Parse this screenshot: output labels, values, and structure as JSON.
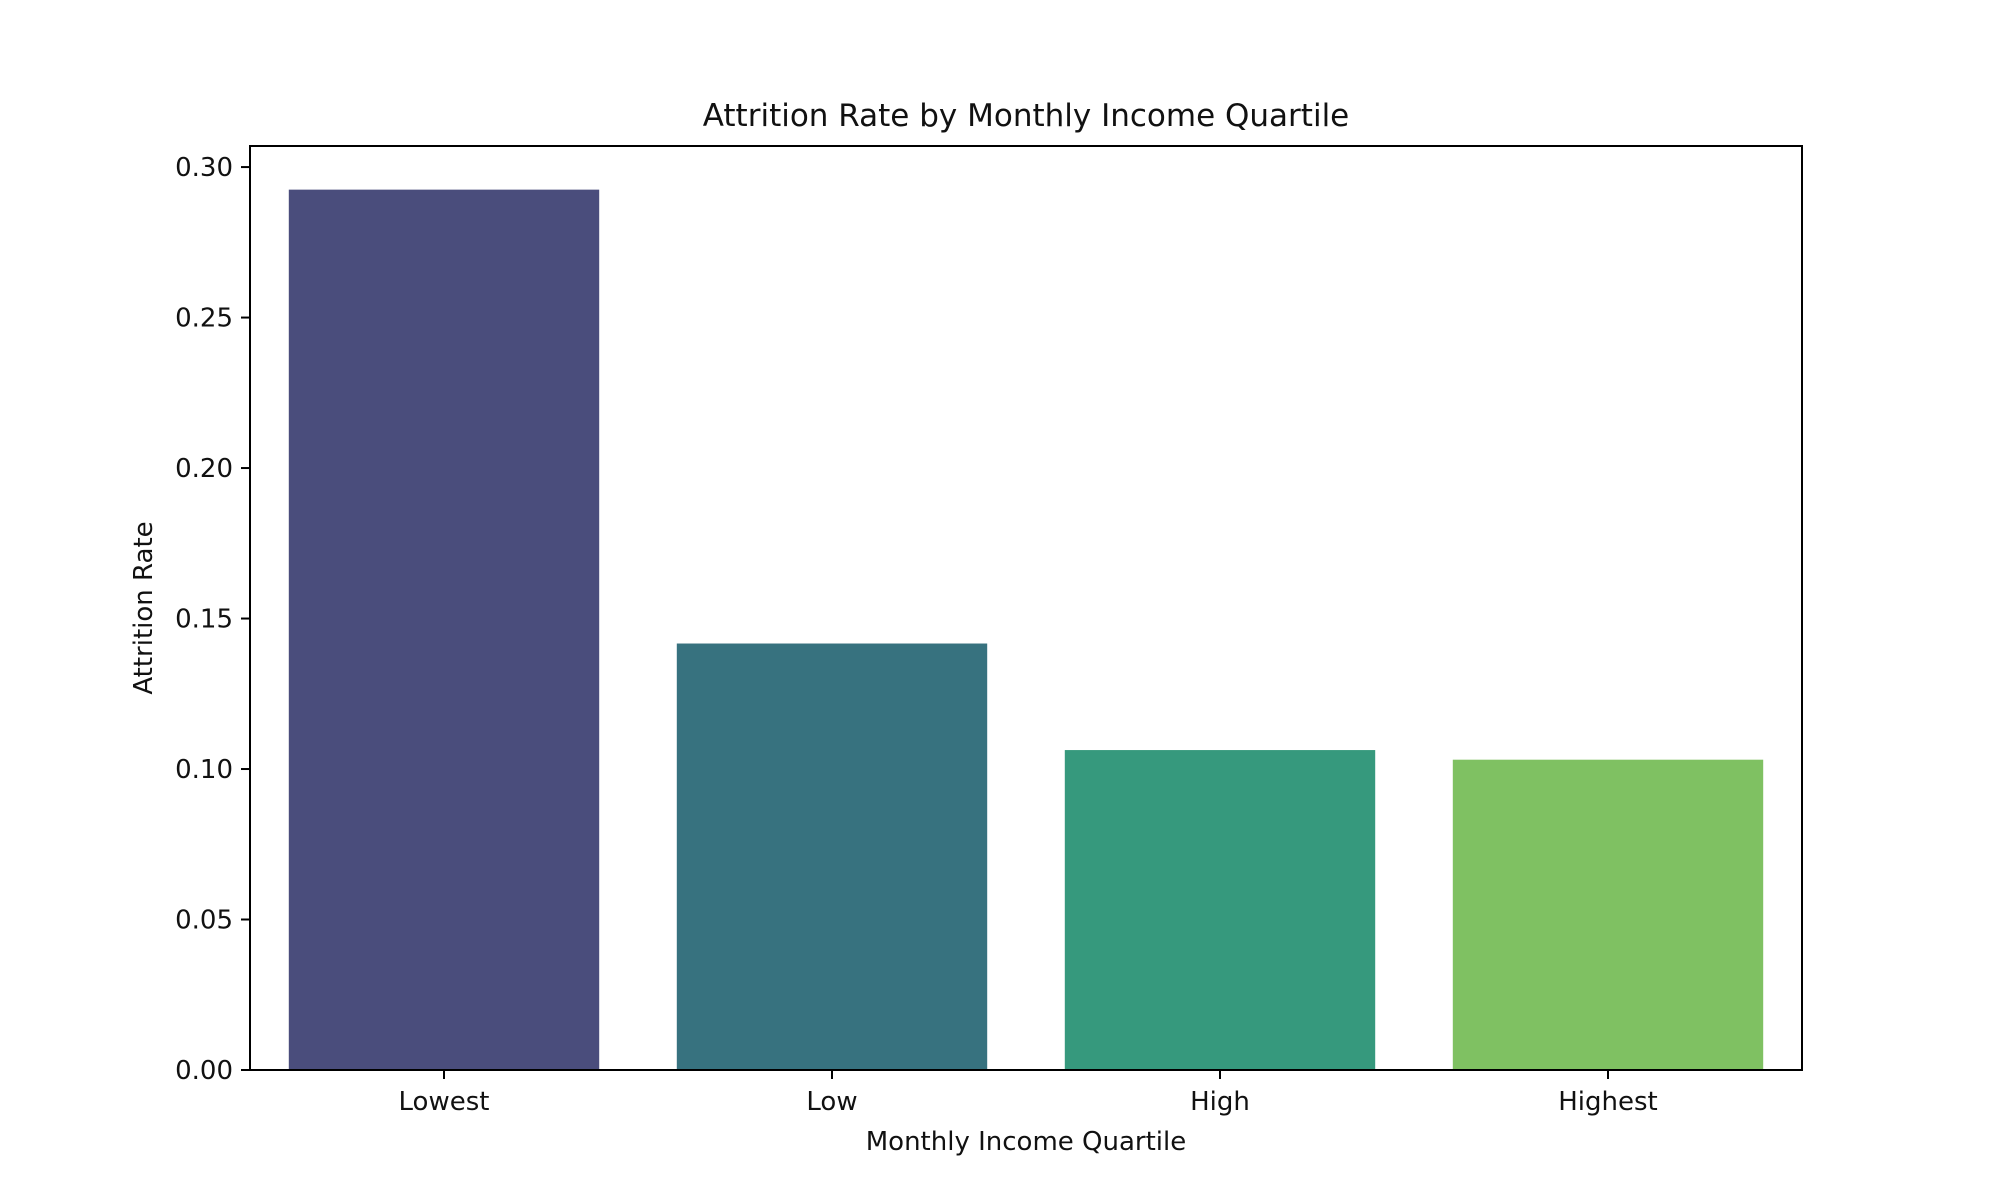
{
  "chart_data": {
    "type": "bar",
    "title": "Attrition Rate by Monthly Income Quartile",
    "xlabel": "Monthly Income Quartile",
    "ylabel": "Attrition Rate",
    "categories": [
      "Lowest",
      "Low",
      "High",
      "Highest"
    ],
    "values": [
      0.2925,
      0.1417,
      0.1063,
      0.1031
    ],
    "ylim": [
      0,
      0.307
    ],
    "yticks": [
      "0.00",
      "0.05",
      "0.10",
      "0.15",
      "0.20",
      "0.25",
      "0.30"
    ],
    "colors": [
      "#4a4d7c",
      "#37727f",
      "#36997d",
      "#7fc162"
    ],
    "grid": false,
    "legend": "none"
  }
}
